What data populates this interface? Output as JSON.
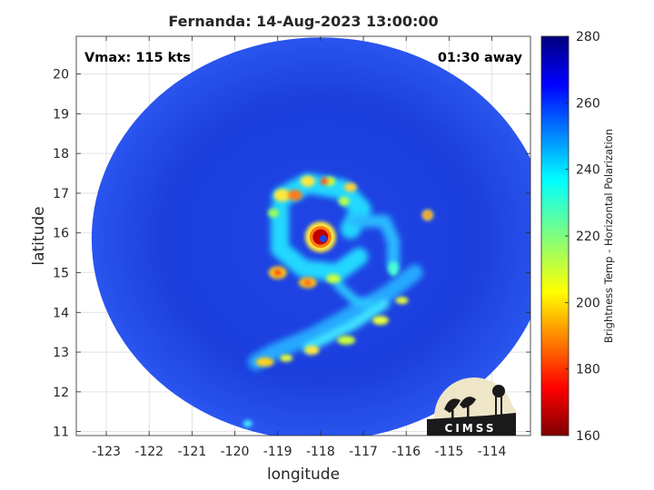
{
  "title": "Fernanda: 14-Aug-2023 13:00:00",
  "annotations": {
    "vmax": "Vmax: 115 kts",
    "time_away": "01:30 away"
  },
  "axes": {
    "xlabel": "longitude",
    "ylabel": "latitude",
    "xlim": [
      -123.7,
      -113.1
    ],
    "ylim": [
      10.9,
      20.95
    ],
    "xticks": [
      -123,
      -122,
      -121,
      -120,
      -119,
      -118,
      -117,
      -116,
      -115,
      -114
    ],
    "yticks": [
      11,
      12,
      13,
      14,
      15,
      16,
      17,
      18,
      19,
      20
    ],
    "grid": true
  },
  "colorbar": {
    "label": "Brightness Temp - Horizontal Polarization",
    "range": [
      160,
      280
    ],
    "ticks": [
      160,
      180,
      200,
      220,
      240,
      260,
      280
    ],
    "colormap": "jet",
    "placement": "right"
  },
  "storm": {
    "eye_lon": -118.0,
    "eye_lat": 15.9,
    "swath_center_lon": -118.0,
    "swath_center_lat": 15.85
  },
  "logo": {
    "text": "CIMSS"
  }
}
